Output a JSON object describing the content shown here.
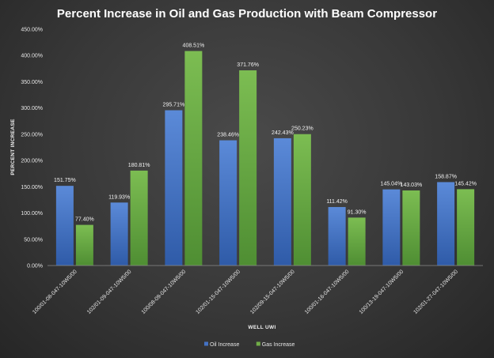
{
  "chart_data": {
    "type": "bar",
    "title": "Percent Increase in Oil and Gas Production with Beam Compressor",
    "xlabel": "WELL UWI",
    "ylabel": "PERCENT INCREASE",
    "ylim": [
      0,
      450
    ],
    "yticks": [
      "0.00%",
      "50.00%",
      "100.00%",
      "150.00%",
      "200.00%",
      "250.00%",
      "300.00%",
      "350.00%",
      "400.00%",
      "450.00%"
    ],
    "grid": false,
    "legend_position": "bottom",
    "categories": [
      "100/01-08-047-10W5/00",
      "102/01-09-047-10W5/00",
      "100/08-09-047-10W5/00",
      "102/01-15-047-10W5/00",
      "102/09-15-047-10W5/00",
      "100/01-16-047-10W5/00",
      "100/13-19-047-10W5/00",
      "102/01-27-047-10W5/00"
    ],
    "series": [
      {
        "name": "Oil Increase",
        "color": "#4472c4",
        "values": [
          151.75,
          119.93,
          295.71,
          238.46,
          242.43,
          111.42,
          145.04,
          158.87
        ],
        "labels": [
          "151.75%",
          "119.93%",
          "295.71%",
          "238.46%",
          "242.43%",
          "111.42%",
          "145.04%",
          "158.87%"
        ]
      },
      {
        "name": "Gas Increase",
        "color": "#70ad47",
        "values": [
          77.4,
          180.81,
          408.51,
          371.76,
          250.23,
          91.3,
          143.03,
          145.42
        ],
        "labels": [
          "77.40%",
          "180.81%",
          "408.51%",
          "371.76%",
          "250.23%",
          "91.30%",
          "143.03%",
          "145.42%"
        ]
      }
    ]
  }
}
